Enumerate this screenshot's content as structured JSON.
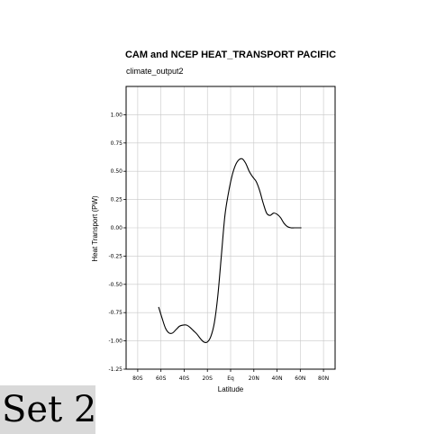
{
  "chart_data": {
    "type": "line",
    "title": "CAM and NCEP HEAT_TRANSPORT PACIFIC",
    "subtitle": "climate_output2",
    "xlabel": "Latitude",
    "ylabel": "Heat Transport (PW)",
    "xlim": [
      -90,
      90
    ],
    "ylim": [
      -1.25,
      1.25
    ],
    "x_ticks": [
      -80,
      -60,
      -40,
      -20,
      0,
      20,
      40,
      60,
      80
    ],
    "x_tick_labels": [
      "80S",
      "60S",
      "40S",
      "20S",
      "Eq",
      "20N",
      "40N",
      "60N",
      "80N"
    ],
    "y_ticks": [
      -1.25,
      -1.0,
      -0.75,
      -0.5,
      -0.25,
      0.0,
      0.25,
      0.5,
      0.75,
      1.0
    ],
    "y_tick_labels": [
      "-1.25",
      "-1.00",
      "-0.75",
      "-0.50",
      "-0.25",
      "0.00",
      "0.25",
      "0.50",
      "0.75",
      "1.00"
    ],
    "grid": true,
    "series": [
      {
        "x": [
          -62,
          -59,
          -56,
          -53,
          -50,
          -47,
          -44,
          -41,
          -38,
          -35,
          -32,
          -29,
          -26,
          -23,
          -20,
          -17,
          -14,
          -11,
          -8,
          -5,
          -2,
          1,
          4,
          7,
          10,
          13,
          16,
          19,
          22,
          25,
          28,
          31,
          34,
          37,
          40,
          43,
          46,
          49,
          52,
          55,
          58,
          61
        ],
        "y": [
          -0.7,
          -0.8,
          -0.89,
          -0.93,
          -0.93,
          -0.9,
          -0.87,
          -0.86,
          -0.86,
          -0.88,
          -0.91,
          -0.94,
          -0.98,
          -1.01,
          -1.01,
          -0.96,
          -0.84,
          -0.6,
          -0.25,
          0.1,
          0.3,
          0.45,
          0.55,
          0.6,
          0.61,
          0.57,
          0.5,
          0.45,
          0.41,
          0.33,
          0.22,
          0.13,
          0.11,
          0.13,
          0.12,
          0.09,
          0.04,
          0.01,
          0.0,
          0.0,
          0.0,
          0.0
        ]
      }
    ]
  },
  "set_label": "Set 2"
}
